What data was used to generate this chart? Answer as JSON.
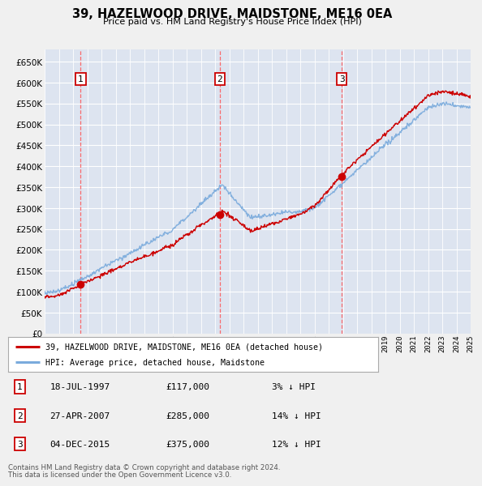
{
  "title": "39, HAZELWOOD DRIVE, MAIDSTONE, ME16 0EA",
  "subtitle": "Price paid vs. HM Land Registry's House Price Index (HPI)",
  "bg_color": "#f0f0f0",
  "plot_bg_color": "#dde4f0",
  "grid_color": "#ffffff",
  "sale_year_floats": [
    1997.54,
    2007.33,
    2015.92
  ],
  "sale_prices": [
    117000,
    285000,
    375000
  ],
  "sale_labels": [
    "1",
    "2",
    "3"
  ],
  "sale_info": [
    {
      "label": "1",
      "date": "18-JUL-1997",
      "price": "£117,000",
      "note": "3% ↓ HPI"
    },
    {
      "label": "2",
      "date": "27-APR-2007",
      "price": "£285,000",
      "note": "14% ↓ HPI"
    },
    {
      "label": "3",
      "date": "04-DEC-2015",
      "price": "£375,000",
      "note": "12% ↓ HPI"
    }
  ],
  "legend_line1": "39, HAZELWOOD DRIVE, MAIDSTONE, ME16 0EA (detached house)",
  "legend_line2": "HPI: Average price, detached house, Maidstone",
  "footer_line1": "Contains HM Land Registry data © Crown copyright and database right 2024.",
  "footer_line2": "This data is licensed under the Open Government Licence v3.0.",
  "red_line_color": "#cc0000",
  "blue_line_color": "#7aabdc",
  "dashed_color": "#ff5555",
  "dot_color": "#cc0000",
  "ylim": [
    0,
    680000
  ],
  "yticks": [
    0,
    50000,
    100000,
    150000,
    200000,
    250000,
    300000,
    350000,
    400000,
    450000,
    500000,
    550000,
    600000,
    650000
  ],
  "year_start": 1995,
  "year_end": 2025
}
